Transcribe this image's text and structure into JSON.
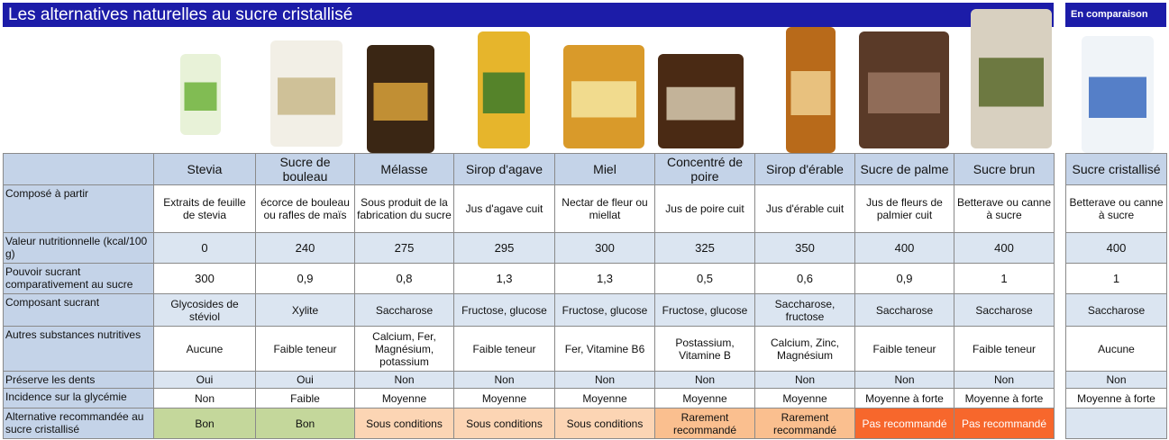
{
  "header": {
    "title": "Les alternatives naturelles au sucre cristallisé",
    "comparison": "En comparaison"
  },
  "table": {
    "columns": [
      "Stevia",
      "Sucre de bouleau",
      "Mélasse",
      "Sirop d'agave",
      "Miel",
      "Concentré de poire",
      "Sirop d'érable",
      "Sucre de palme",
      "Sucre brun"
    ],
    "comparison_column": "Sucre cristallisé",
    "rows": [
      {
        "label": "Composé à partir",
        "cells": [
          "Extraits de feuille de stevia",
          "écorce de bouleau ou rafles de maïs",
          "Sous produit de la fabrication du sucre",
          "Jus d'agave cuit",
          "Nectar de fleur ou miellat",
          "Jus de poire cuit",
          "Jus d'érable cuit",
          "Jus de fleurs de palmier cuit",
          "Betterave ou canne à sucre"
        ],
        "comparison": "Betterave ou canne à sucre"
      },
      {
        "label": "Valeur nutritionnelle (kcal/100 g)",
        "cells": [
          "0",
          "240",
          "275",
          "295",
          "300",
          "325",
          "350",
          "400",
          "400"
        ],
        "comparison": "400"
      },
      {
        "label": "Pouvoir sucrant comparativement au sucre",
        "cells": [
          "300",
          "0,9",
          "0,8",
          "1,3",
          "1,3",
          "0,5",
          "0,6",
          "0,9",
          "1"
        ],
        "comparison": "1"
      },
      {
        "label": "Composant sucrant",
        "cells": [
          "Glycosides de stéviol",
          "Xylite",
          "Saccharose",
          "Fructose, glucose",
          "Fructose, glucose",
          "Fructose, glucose",
          "Saccharose, fructose",
          "Saccharose",
          "Saccharose"
        ],
        "comparison": "Saccharose"
      },
      {
        "label": "Autres substances nutritives",
        "cells": [
          "Aucune",
          "Faible teneur",
          "Calcium, Fer, Magnésium, potassium",
          "Faible teneur",
          "Fer, Vitamine B6",
          "Postassium, Vitamine B",
          "Calcium, Zinc, Magnésium",
          "Faible teneur",
          "Faible teneur"
        ],
        "comparison": "Aucune"
      },
      {
        "label": "Préserve les dents",
        "cells": [
          "Oui",
          "Oui",
          "Non",
          "Non",
          "Non",
          "Non",
          "Non",
          "Non",
          "Non"
        ],
        "comparison": "Non"
      },
      {
        "label": "Incidence sur la glycémie",
        "cells": [
          "Non",
          "Faible",
          "Moyenne",
          "Moyenne",
          "Moyenne",
          "Moyenne",
          "Moyenne",
          "Moyenne à forte",
          "Moyenne à forte"
        ],
        "comparison": "Moyenne à forte"
      },
      {
        "label": "Alternative recommandée au sucre cristallisé",
        "cells": [
          "Bon",
          "Bon",
          "Sous conditions",
          "Sous conditions",
          "Sous conditions",
          "Rarement recommandé",
          "Rarement recommandé",
          "Pas recommandé",
          "Pas recommandé"
        ]
      }
    ]
  }
}
